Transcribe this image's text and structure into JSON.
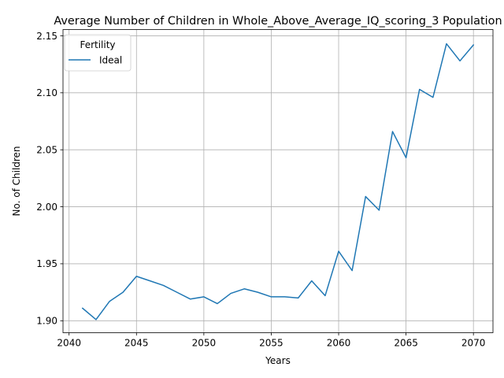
{
  "chart_data": {
    "type": "line",
    "title": "Average Number of Children in Whole_Above_Average_IQ_scoring_3 Population",
    "xlabel": "Years",
    "ylabel": "No. of Children",
    "xlim": [
      2039.55,
      2071.45
    ],
    "ylim": [
      1.8895,
      2.1555
    ],
    "xticks": [
      2040,
      2045,
      2050,
      2055,
      2060,
      2065,
      2070
    ],
    "yticks": [
      1.9,
      1.95,
      2.0,
      2.05,
      2.1,
      2.15
    ],
    "xtick_labels": [
      "2040",
      "2045",
      "2050",
      "2055",
      "2060",
      "2065",
      "2070"
    ],
    "ytick_labels": [
      "1.90",
      "1.95",
      "2.00",
      "2.05",
      "2.10",
      "2.15"
    ],
    "grid": true,
    "legend": {
      "title": "Fertility",
      "placement": "top-left"
    },
    "series": [
      {
        "name": "Ideal",
        "color": "#1f77b4",
        "x": [
          2041,
          2042,
          2043,
          2044,
          2045,
          2046,
          2047,
          2048,
          2049,
          2050,
          2051,
          2052,
          2053,
          2054,
          2055,
          2056,
          2057,
          2058,
          2059,
          2060,
          2061,
          2062,
          2063,
          2064,
          2065,
          2066,
          2067,
          2068,
          2069,
          2070
        ],
        "y": [
          1.911,
          1.901,
          1.917,
          1.925,
          1.939,
          1.935,
          1.931,
          1.925,
          1.919,
          1.921,
          1.915,
          1.924,
          1.928,
          1.925,
          1.921,
          1.921,
          1.92,
          1.935,
          1.922,
          1.961,
          1.944,
          2.009,
          1.997,
          2.066,
          2.043,
          2.103,
          2.096,
          2.143,
          2.128,
          2.142
        ]
      }
    ]
  }
}
